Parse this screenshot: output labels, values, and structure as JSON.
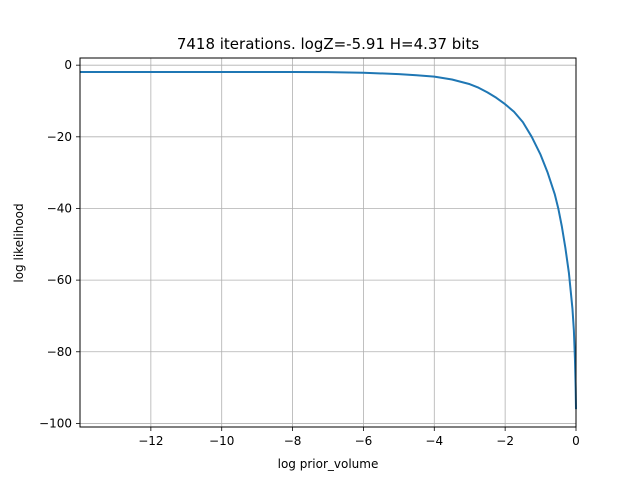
{
  "chart_data": {
    "type": "line",
    "title": "7418 iterations. logZ=-5.91 H=4.37 bits",
    "xlabel": "log prior_volume",
    "ylabel": "log likelihood",
    "xlim": [
      -14.0,
      0.0
    ],
    "ylim": [
      -101.0,
      2.0
    ],
    "xticks": [
      -12,
      -10,
      -8,
      -6,
      -4,
      -2,
      0
    ],
    "xtick_labels": [
      "−12",
      "−10",
      "−8",
      "−6",
      "−4",
      "−2",
      "0"
    ],
    "yticks": [
      0,
      -20,
      -40,
      -60,
      -80,
      -100
    ],
    "ytick_labels": [
      "0",
      "−20",
      "−40",
      "−60",
      "−80",
      "−100"
    ],
    "grid": true,
    "line_color": "#1f77b4",
    "series": [
      {
        "x": [
          -14.0,
          -12.0,
          -10.0,
          -8.0,
          -7.0,
          -6.0,
          -5.0,
          -4.5,
          -4.0,
          -3.5,
          -3.0,
          -2.75,
          -2.5,
          -2.25,
          -2.0,
          -1.75,
          -1.5,
          -1.25,
          -1.0,
          -0.8,
          -0.6,
          -0.5,
          -0.4,
          -0.3,
          -0.2,
          -0.15,
          -0.1,
          -0.06,
          -0.03,
          -0.01,
          0.0
        ],
        "y": [
          -1.9,
          -1.9,
          -1.9,
          -1.9,
          -1.95,
          -2.1,
          -2.5,
          -2.8,
          -3.2,
          -4.0,
          -5.3,
          -6.3,
          -7.6,
          -9.1,
          -10.9,
          -13.0,
          -15.9,
          -20.0,
          -25.0,
          -30.0,
          -36.0,
          -40.0,
          -45.0,
          -51.0,
          -58.0,
          -63.0,
          -68.0,
          -74.0,
          -82.0,
          -90.0,
          -96.0
        ]
      }
    ]
  }
}
